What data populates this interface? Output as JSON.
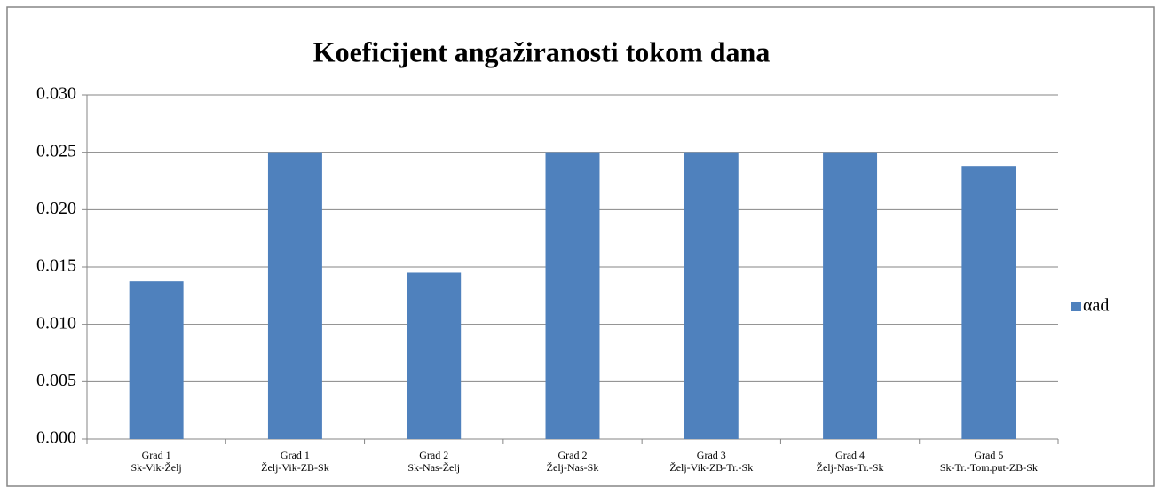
{
  "chart_data": {
    "type": "bar",
    "title": "Koeficijent angažiranosti tokom dana",
    "categories": [
      [
        "Grad 1",
        "Sk-Vik-Želj"
      ],
      [
        "Grad 1",
        "Želj-Vik-ZB-Sk"
      ],
      [
        "Grad 2",
        "Sk-Nas-Želj"
      ],
      [
        "Grad 2",
        "Želj-Nas-Sk"
      ],
      [
        "Grad 3",
        "Želj-Vik-ZB-Tr.-Sk"
      ],
      [
        "Grad 4",
        "Želj-Nas-Tr.-Sk"
      ],
      [
        "Grad 5",
        "Sk-Tr.-Tom.put-ZB-Sk"
      ]
    ],
    "series": [
      {
        "name": "αad",
        "color": "#4f81bd",
        "values": [
          0.01375,
          0.025,
          0.0145,
          0.025,
          0.025,
          0.025,
          0.0238
        ]
      }
    ],
    "ylim": [
      0,
      0.03
    ],
    "yticks": [
      {
        "value": 0,
        "label": "0.000"
      },
      {
        "value": 0.005,
        "label": "0.005"
      },
      {
        "value": 0.01,
        "label": "0.010"
      },
      {
        "value": 0.015,
        "label": "0.015"
      },
      {
        "value": 0.02,
        "label": "0.020"
      },
      {
        "value": 0.025,
        "label": "0.025"
      },
      {
        "value": 0.03,
        "label": "0.030"
      }
    ],
    "grid": true,
    "legend": "right"
  }
}
